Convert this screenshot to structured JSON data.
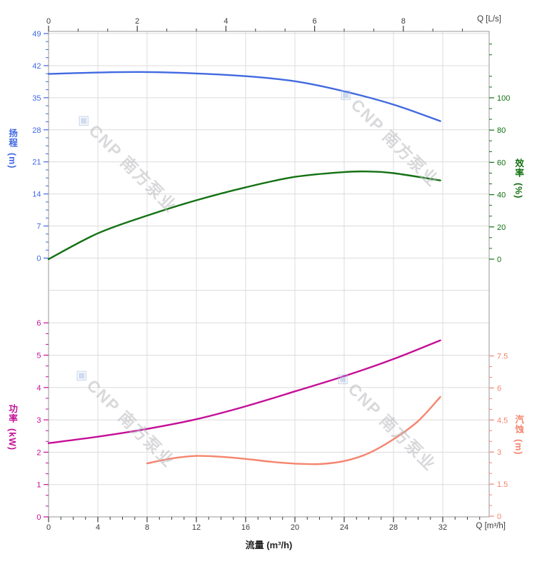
{
  "brand": {
    "watermark_logo": "◈",
    "watermark_text": "CNP 南方泵业"
  },
  "axes": {
    "flow_top": {
      "unit_label": "Q [L/s]",
      "ticks": [
        0,
        2,
        4,
        6,
        8
      ],
      "color": "#3c3c3c"
    },
    "flow_bottom": {
      "unit_label": "Q [m³/h]",
      "axis_title": "流量 (m³/h)",
      "ticks": [
        0,
        4,
        8,
        12,
        16,
        20,
        24,
        28,
        32
      ],
      "color": "#3c3c3c"
    },
    "head": {
      "title": "扬程",
      "unit": "(m)",
      "ticks": [
        49,
        42,
        35,
        28,
        21,
        14,
        7,
        0
      ],
      "range": [
        0,
        49
      ],
      "color": "#4169e1"
    },
    "efficiency": {
      "title": "效率",
      "unit": "(%)",
      "ticks": [
        100,
        80,
        60,
        40,
        20,
        0
      ],
      "range": [
        0,
        100
      ],
      "color": "#11700f"
    },
    "power": {
      "title": "功率",
      "unit": "(kW)",
      "ticks": [
        6,
        5,
        4,
        3,
        2,
        1,
        0
      ],
      "range": [
        0,
        6
      ],
      "color": "#c40f96"
    },
    "npsh": {
      "title": "汽蚀",
      "unit": "(m)",
      "ticks": [
        7.5,
        6,
        4.5,
        3,
        1.5,
        0
      ],
      "range": [
        0,
        7.5
      ],
      "color": "#f5846e"
    }
  },
  "chart_data": [
    {
      "type": "line",
      "panel": "head-and-efficiency",
      "x_axis": {
        "label_bottom": "流量 (m³/h)",
        "label_top": "Q [L/s]",
        "range_m3h": [
          0,
          35.8
        ],
        "gridline_step": 4
      },
      "series": [
        {
          "name": "扬程 (head)",
          "y_axis": "head",
          "color": "#4169e1",
          "points": [
            [
              0,
              40.2
            ],
            [
              4,
              40.5
            ],
            [
              8,
              40.6
            ],
            [
              12,
              40.3
            ],
            [
              16,
              39.7
            ],
            [
              20,
              38.6
            ],
            [
              24,
              36.4
            ],
            [
              28,
              33.5
            ],
            [
              31.8,
              29.9
            ]
          ]
        },
        {
          "name": "效率 (efficiency)",
          "y_axis": "efficiency",
          "color": "#137113",
          "points": [
            [
              0,
              0
            ],
            [
              4,
              16
            ],
            [
              8,
              27
            ],
            [
              12,
              36.5
            ],
            [
              16,
              44.5
            ],
            [
              20,
              51
            ],
            [
              24,
              54
            ],
            [
              26,
              54.3
            ],
            [
              28,
              53.3
            ],
            [
              31.8,
              48.8
            ]
          ]
        }
      ]
    },
    {
      "type": "line",
      "panel": "power-and-npsh",
      "x_axis": {
        "label_bottom": "流量 (m³/h)",
        "range_m3h": [
          0,
          35.8
        ],
        "gridline_step": 4
      },
      "series": [
        {
          "name": "功率 (power)",
          "y_axis": "power",
          "color": "#c40f96",
          "points": [
            [
              0,
              2.28
            ],
            [
              4,
              2.48
            ],
            [
              8,
              2.72
            ],
            [
              12,
              3.02
            ],
            [
              16,
              3.42
            ],
            [
              20,
              3.88
            ],
            [
              24,
              4.35
            ],
            [
              28,
              4.88
            ],
            [
              31.8,
              5.46
            ]
          ]
        },
        {
          "name": "汽蚀 (NPSH)",
          "y_axis": "npsh",
          "color": "#f5846e",
          "points": [
            [
              8,
              2.47
            ],
            [
              10,
              2.7
            ],
            [
              12,
              2.82
            ],
            [
              14,
              2.78
            ],
            [
              16,
              2.68
            ],
            [
              18,
              2.55
            ],
            [
              20,
              2.46
            ],
            [
              22,
              2.44
            ],
            [
              24,
              2.58
            ],
            [
              26,
              2.95
            ],
            [
              28,
              3.6
            ],
            [
              30,
              4.45
            ],
            [
              31.8,
              5.58
            ]
          ]
        }
      ]
    }
  ]
}
